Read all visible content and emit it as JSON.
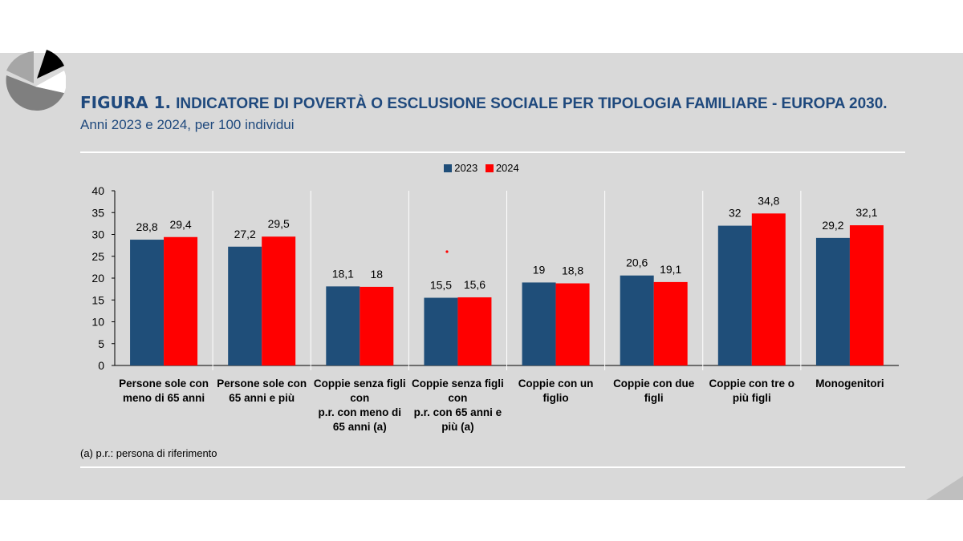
{
  "header": {
    "figure_label": "FIGURA 1.",
    "title": "INDICATORE DI POVERTÀ O ESCLUSIONE SOCIALE PER TIPOLOGIA FAMILIARE - EUROPA 2030.",
    "subtitle": "Anni 2023 e 2024, per 100 individui"
  },
  "footnote": "(a) p.r.: persona di riferimento",
  "colors": {
    "series_2023": "#1f4e79",
    "series_2024": "#ff0000",
    "title": "#1f497d",
    "panel": "#d9d9d9"
  },
  "chart_data": {
    "type": "bar",
    "categories": [
      [
        "Persone sole con",
        "meno di 65 anni"
      ],
      [
        "Persone sole con",
        "65 anni e più"
      ],
      [
        "Coppie senza figli",
        "con",
        "p.r. con meno di",
        "65 anni (a)"
      ],
      [
        "Coppie senza figli",
        "con",
        "p.r. con 65 anni e",
        "più (a)"
      ],
      [
        "Coppie con un",
        "figlio"
      ],
      [
        "Coppie con due",
        "figli"
      ],
      [
        "Coppie con tre o",
        "più figli"
      ],
      [
        "Monogenitori"
      ]
    ],
    "series": [
      {
        "name": "2023",
        "values": [
          28.8,
          27.2,
          18.1,
          15.5,
          19,
          20.6,
          32,
          29.2
        ],
        "labels": [
          "28,8",
          "27,2",
          "18,1",
          "15,5",
          "19",
          "20,6",
          "32",
          "29,2"
        ]
      },
      {
        "name": "2024",
        "values": [
          29.4,
          29.5,
          18,
          15.6,
          18.8,
          19.1,
          34.8,
          32.1
        ],
        "labels": [
          "29,4",
          "29,5",
          "18",
          "15,6",
          "18,8",
          "19,1",
          "34,8",
          "32,1"
        ]
      }
    ],
    "y_ticks": [
      "0",
      "5",
      "10",
      "15",
      "20",
      "25",
      "30",
      "35",
      "40"
    ],
    "ylim": [
      0,
      40
    ],
    "legend_position": "top-center",
    "grid": false
  }
}
